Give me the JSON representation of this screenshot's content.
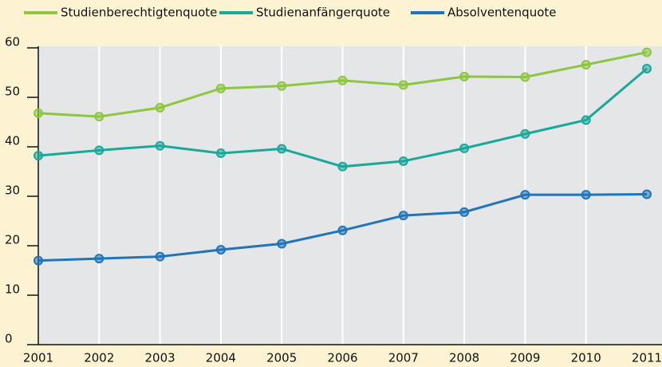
{
  "chart_data": {
    "type": "line",
    "x": [
      "2001",
      "2002",
      "2003",
      "2004",
      "2005",
      "2006",
      "2007",
      "2008",
      "2009",
      "2010",
      "2011"
    ],
    "series": [
      {
        "name": "Studienberechtigtenquote",
        "color": "#8dc63f",
        "values": [
          46.8,
          46.1,
          47.9,
          51.8,
          52.3,
          53.4,
          52.5,
          54.2,
          54.1,
          56.6,
          59.1
        ]
      },
      {
        "name": "Studienanfängerquote",
        "color": "#1aa89a",
        "values": [
          38.2,
          39.3,
          40.2,
          38.7,
          39.6,
          36.0,
          37.1,
          39.7,
          42.6,
          45.4,
          55.8
        ]
      },
      {
        "name": "Absolventenquote",
        "color": "#1f75b8",
        "values": [
          17.0,
          17.4,
          17.8,
          19.2,
          20.4,
          23.1,
          26.1,
          26.8,
          30.3,
          30.3,
          30.4
        ]
      }
    ],
    "ylim": [
      0,
      60
    ],
    "yticks": [
      0,
      10,
      20,
      30,
      40,
      50,
      60
    ],
    "grid": true,
    "legend": "top"
  }
}
